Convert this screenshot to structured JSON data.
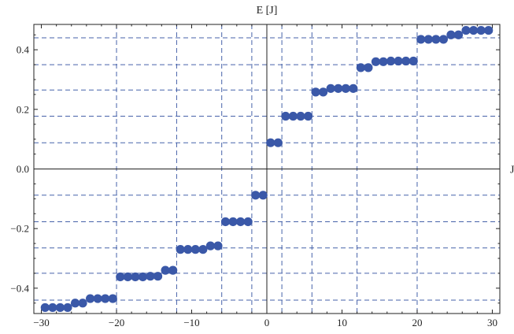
{
  "chart_data": {
    "type": "scatter",
    "title": "",
    "xlabel": "J",
    "ylabel": "E [J]",
    "xlim": [
      -31,
      31
    ],
    "ylim": [
      -0.485,
      0.485
    ],
    "x_ticks": [
      -30,
      -20,
      -10,
      0,
      10,
      20,
      30
    ],
    "x_tick_labels": [
      "−30",
      "−20",
      "−10",
      "0",
      "10",
      "20",
      "30"
    ],
    "y_ticks": [
      -0.4,
      -0.2,
      0.0,
      0.2,
      0.4
    ],
    "y_tick_labels": [
      "−0.4",
      "−0.2",
      "0.0",
      "0.2",
      "0.4"
    ],
    "grid_x": [
      -20,
      -12,
      -6,
      -2,
      2,
      6,
      12,
      20
    ],
    "grid_y": [
      -0.44,
      -0.35,
      -0.265,
      -0.177,
      -0.088,
      0.088,
      0.177,
      0.265,
      0.35,
      0.44
    ],
    "point_color": "#3a58a8",
    "grid_color": "#3d5aa5",
    "points": [
      {
        "x": -29.5,
        "y": -0.465
      },
      {
        "x": -28.5,
        "y": -0.465
      },
      {
        "x": -27.5,
        "y": -0.465
      },
      {
        "x": -26.5,
        "y": -0.465
      },
      {
        "x": -25.5,
        "y": -0.45
      },
      {
        "x": -24.5,
        "y": -0.45
      },
      {
        "x": -23.5,
        "y": -0.435
      },
      {
        "x": -22.5,
        "y": -0.435
      },
      {
        "x": -21.5,
        "y": -0.435
      },
      {
        "x": -20.5,
        "y": -0.435
      },
      {
        "x": -19.5,
        "y": -0.362
      },
      {
        "x": -18.5,
        "y": -0.362
      },
      {
        "x": -17.5,
        "y": -0.362
      },
      {
        "x": -16.5,
        "y": -0.362
      },
      {
        "x": -15.5,
        "y": -0.36
      },
      {
        "x": -14.5,
        "y": -0.36
      },
      {
        "x": -13.5,
        "y": -0.34
      },
      {
        "x": -12.5,
        "y": -0.34
      },
      {
        "x": -11.5,
        "y": -0.27
      },
      {
        "x": -10.5,
        "y": -0.27
      },
      {
        "x": -9.5,
        "y": -0.27
      },
      {
        "x": -8.5,
        "y": -0.27
      },
      {
        "x": -7.5,
        "y": -0.258
      },
      {
        "x": -6.5,
        "y": -0.258
      },
      {
        "x": -5.5,
        "y": -0.177
      },
      {
        "x": -4.5,
        "y": -0.177
      },
      {
        "x": -3.5,
        "y": -0.177
      },
      {
        "x": -2.5,
        "y": -0.177
      },
      {
        "x": -1.5,
        "y": -0.088
      },
      {
        "x": -0.5,
        "y": -0.088
      },
      {
        "x": 0.5,
        "y": 0.088
      },
      {
        "x": 1.5,
        "y": 0.088
      },
      {
        "x": 2.5,
        "y": 0.177
      },
      {
        "x": 3.5,
        "y": 0.177
      },
      {
        "x": 4.5,
        "y": 0.177
      },
      {
        "x": 5.5,
        "y": 0.177
      },
      {
        "x": 6.5,
        "y": 0.258
      },
      {
        "x": 7.5,
        "y": 0.258
      },
      {
        "x": 8.5,
        "y": 0.27
      },
      {
        "x": 9.5,
        "y": 0.27
      },
      {
        "x": 10.5,
        "y": 0.27
      },
      {
        "x": 11.5,
        "y": 0.27
      },
      {
        "x": 12.5,
        "y": 0.34
      },
      {
        "x": 13.5,
        "y": 0.34
      },
      {
        "x": 14.5,
        "y": 0.36
      },
      {
        "x": 15.5,
        "y": 0.36
      },
      {
        "x": 16.5,
        "y": 0.362
      },
      {
        "x": 17.5,
        "y": 0.362
      },
      {
        "x": 18.5,
        "y": 0.362
      },
      {
        "x": 19.5,
        "y": 0.362
      },
      {
        "x": 20.5,
        "y": 0.435
      },
      {
        "x": 21.5,
        "y": 0.435
      },
      {
        "x": 22.5,
        "y": 0.435
      },
      {
        "x": 23.5,
        "y": 0.435
      },
      {
        "x": 24.5,
        "y": 0.45
      },
      {
        "x": 25.5,
        "y": 0.45
      },
      {
        "x": 26.5,
        "y": 0.465
      },
      {
        "x": 27.5,
        "y": 0.465
      },
      {
        "x": 28.5,
        "y": 0.465
      },
      {
        "x": 29.5,
        "y": 0.465
      }
    ]
  }
}
